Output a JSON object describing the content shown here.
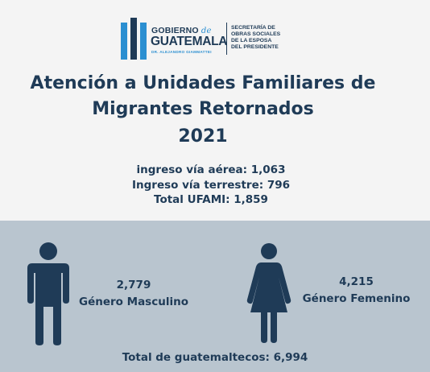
{
  "logo": {
    "gobierno": "GOBIERNO",
    "de": "de",
    "guatemala": "GUATEMALA",
    "president": "DR. ALEJANDRO GIAMMATTEI",
    "sosep": [
      "SECRETARÍA DE",
      "OBRAS SOCIALES",
      "DE LA ESPOSA",
      "DEL PRESIDENTE"
    ],
    "colors": {
      "dark": "#1f3b57",
      "light": "#2b8fd1"
    }
  },
  "title": {
    "line1": "Atención a Unidades Familiares de",
    "line2": "Migrantes Retornados",
    "year": "2021"
  },
  "stats": {
    "aerea": "ingreso vía aérea: 1,063",
    "terrestre": "Ingreso vía terrestre: 796",
    "total_ufami": "Total UFAMI: 1,859"
  },
  "gender": {
    "male": {
      "value": "2,779",
      "label": "Género Masculino",
      "icon": "male-person-icon"
    },
    "female": {
      "value": "4,215",
      "label": "Género Femenino",
      "icon": "female-person-icon"
    }
  },
  "total": "Total de guatemaltecos: 6,994",
  "colors": {
    "text": "#1f3b57",
    "panel": "#b9c5cf",
    "background": "#f4f4f4"
  }
}
